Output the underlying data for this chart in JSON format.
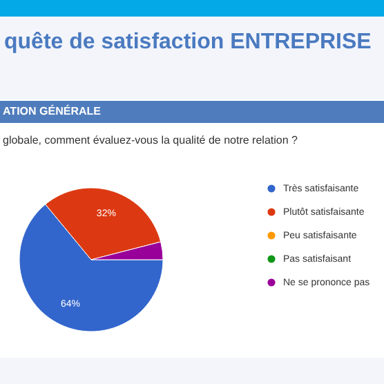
{
  "chart_data": {
    "type": "pie",
    "title": "quête de satisfaction ENTREPRISE",
    "subtitle": "ATION GÉNÉRALE",
    "annotations": [
      "globale, comment évaluez-vous la qualité de notre relation ?"
    ],
    "categories": [
      "Très satisfaisante",
      "Plutôt satisfaisante",
      "Peu satisfaisante",
      "Pas satisfaisant",
      "Ne se prononce pas"
    ],
    "values": [
      64,
      32,
      0,
      0,
      4
    ],
    "colors": [
      "#3366cc",
      "#dc3912",
      "#ff9900",
      "#109618",
      "#990099"
    ],
    "value_labels": [
      "64%",
      "32%",
      null,
      null,
      null
    ],
    "legend": "right"
  }
}
